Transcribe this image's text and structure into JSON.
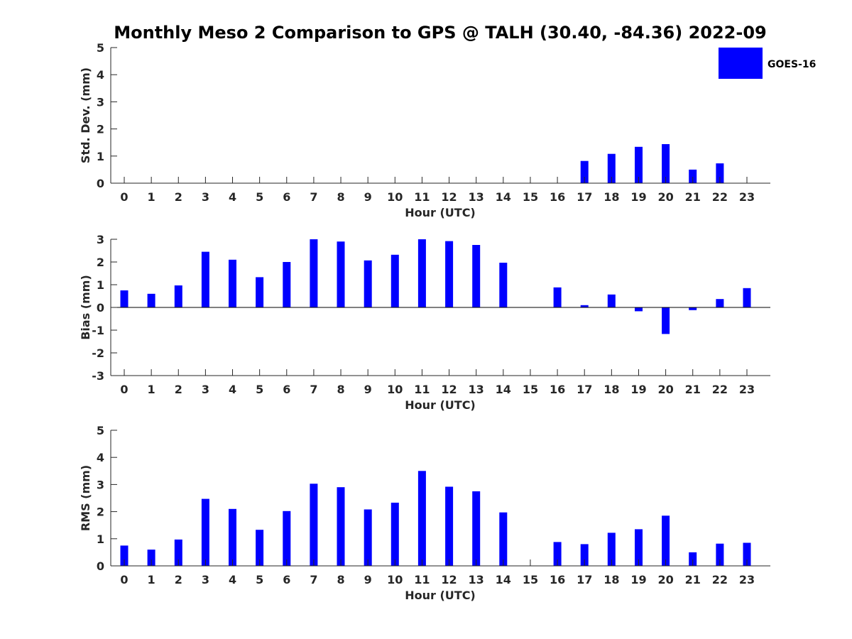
{
  "title": "Monthly Meso 2 Comparison to GPS @ TALH (30.40, -84.36) 2022-09",
  "legend": {
    "label": "GOES-16",
    "color": "#0000ff"
  },
  "colors": {
    "bar": "#0000ff",
    "axis": "#262626"
  },
  "chart_data": [
    {
      "type": "bar",
      "categories": [
        "0",
        "1",
        "2",
        "3",
        "4",
        "5",
        "6",
        "7",
        "8",
        "9",
        "10",
        "11",
        "12",
        "13",
        "14",
        "15",
        "16",
        "17",
        "18",
        "19",
        "20",
        "21",
        "22",
        "23"
      ],
      "values": [
        null,
        null,
        null,
        null,
        null,
        null,
        null,
        null,
        null,
        null,
        null,
        null,
        null,
        null,
        null,
        null,
        null,
        0.82,
        1.08,
        1.34,
        1.44,
        0.5,
        0.73,
        null
      ],
      "xlabel": "Hour (UTC)",
      "ylabel": "Std. Dev. (mm)",
      "ylim": [
        0,
        5
      ],
      "yticks": [
        0,
        1,
        2,
        3,
        4,
        5
      ],
      "series": [
        {
          "name": "GOES-16"
        }
      ]
    },
    {
      "type": "bar",
      "categories": [
        "0",
        "1",
        "2",
        "3",
        "4",
        "5",
        "6",
        "7",
        "8",
        "9",
        "10",
        "11",
        "12",
        "13",
        "14",
        "15",
        "16",
        "17",
        "18",
        "19",
        "20",
        "21",
        "22",
        "23"
      ],
      "values": [
        0.75,
        0.6,
        0.97,
        2.45,
        2.1,
        1.33,
        2.0,
        3.0,
        2.9,
        2.07,
        2.32,
        3.0,
        2.92,
        2.75,
        1.97,
        null,
        0.88,
        0.1,
        0.57,
        -0.17,
        -1.17,
        -0.12,
        0.37,
        0.85
      ],
      "xlabel": "Hour (UTC)",
      "ylabel": "Bias (mm)",
      "ylim": [
        -3,
        3
      ],
      "yticks": [
        -3,
        -2,
        -1,
        0,
        1,
        2,
        3
      ]
    },
    {
      "type": "bar",
      "categories": [
        "0",
        "1",
        "2",
        "3",
        "4",
        "5",
        "6",
        "7",
        "8",
        "9",
        "10",
        "11",
        "12",
        "13",
        "14",
        "15",
        "16",
        "17",
        "18",
        "19",
        "20",
        "21",
        "22",
        "23"
      ],
      "values": [
        0.75,
        0.6,
        0.97,
        2.47,
        2.1,
        1.33,
        2.02,
        3.03,
        2.9,
        2.08,
        2.33,
        3.5,
        2.92,
        2.75,
        1.97,
        null,
        0.88,
        0.8,
        1.22,
        1.35,
        1.85,
        0.5,
        0.82,
        0.85
      ],
      "xlabel": "Hour (UTC)",
      "ylabel": "RMS (mm)",
      "ylim": [
        0,
        5
      ],
      "yticks": [
        0,
        1,
        2,
        3,
        4,
        5
      ]
    }
  ]
}
